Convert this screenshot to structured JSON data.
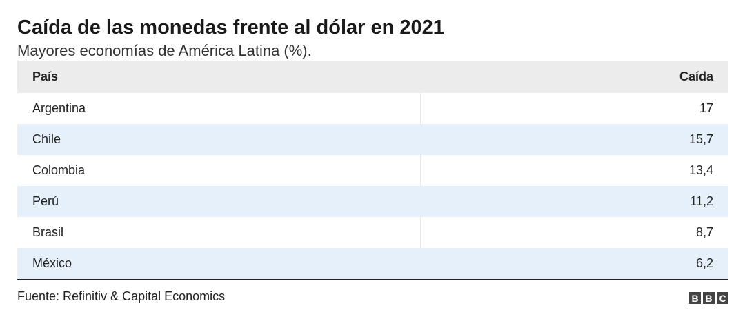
{
  "header": {
    "title": "Caída de las monedas frente al dólar en 2021",
    "subtitle": "Mayores economías de América Latina (%)."
  },
  "table": {
    "columns": [
      "País",
      "Caída"
    ],
    "rows": [
      [
        "Argentina",
        "17"
      ],
      [
        "Chile",
        "15,7"
      ],
      [
        "Colombia",
        "13,4"
      ],
      [
        "Perú",
        "11,2"
      ],
      [
        "Brasil",
        "8,7"
      ],
      [
        "México",
        "6,2"
      ]
    ]
  },
  "footer": {
    "source": "Fuente: Refinitiv & Capital Economics",
    "logo": [
      "B",
      "B",
      "C"
    ]
  }
}
